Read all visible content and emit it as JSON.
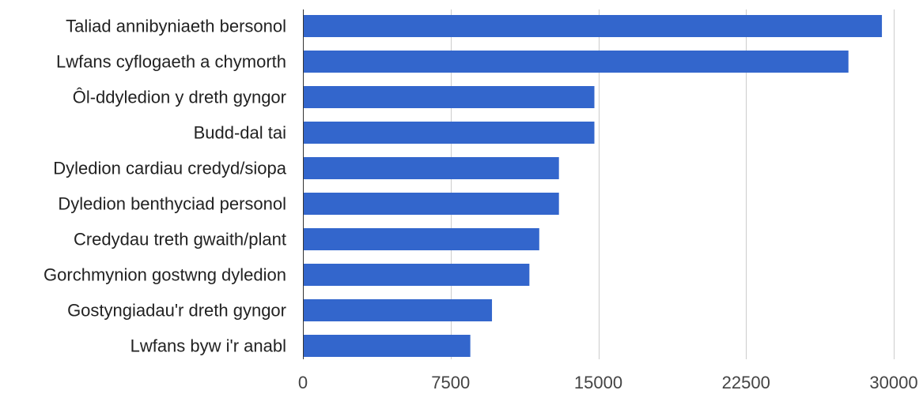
{
  "chart_data": {
    "type": "bar",
    "orientation": "horizontal",
    "categories": [
      "Taliad annibyniaeth bersonol",
      "Lwfans cyflogaeth a chymorth",
      "Ôl-ddyledion y dreth gyngor",
      "Budd-dal tai",
      "Dyledion cardiau credyd/siopa",
      "Dyledion benthyciad personol",
      "Credydau treth gwaith/plant",
      "Gorchmynion gostwng dyledion",
      "Gostyngiadau'r dreth gyngor",
      "Lwfans byw i'r anabl"
    ],
    "values": [
      29400,
      27700,
      14800,
      14800,
      13000,
      13000,
      12000,
      11500,
      9600,
      8500
    ],
    "xlim": [
      0,
      30000
    ],
    "xticks": [
      0,
      7500,
      15000,
      22500,
      30000
    ],
    "xtick_labels": [
      "0",
      "7500",
      "15000",
      "22500",
      "30000"
    ],
    "bar_color": "#3366cc",
    "grid": true,
    "title": "",
    "xlabel": "",
    "ylabel": ""
  }
}
